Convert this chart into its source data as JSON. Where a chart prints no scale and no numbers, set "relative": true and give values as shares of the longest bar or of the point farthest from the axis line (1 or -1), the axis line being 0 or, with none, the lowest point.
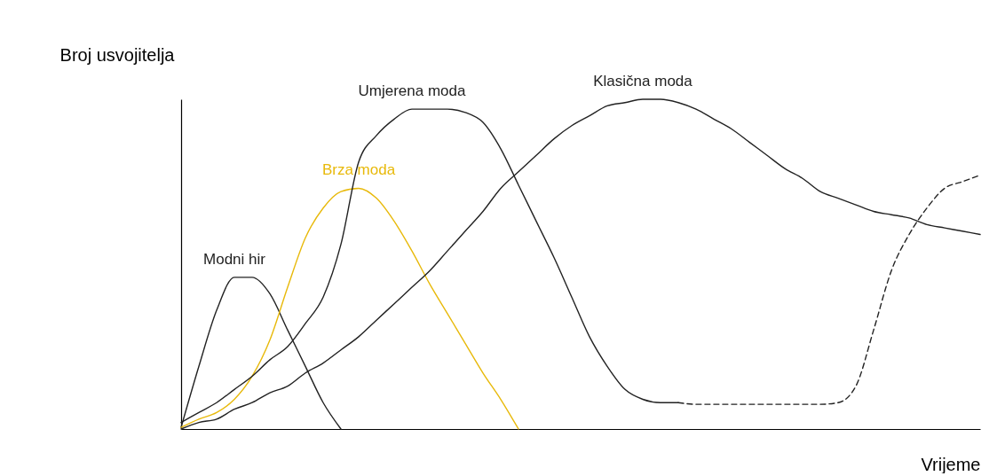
{
  "chart_data": {
    "type": "line",
    "relative": true,
    "xlabel": "Vrijeme",
    "ylabel": "Broj usvojitelja",
    "categories": [
      null,
      null,
      null,
      null,
      null,
      null,
      null,
      null,
      null,
      null,
      null,
      null,
      null,
      null,
      null,
      null,
      null,
      null,
      null,
      null,
      null,
      null,
      null,
      null,
      null,
      null,
      null,
      null,
      null,
      null,
      null,
      null,
      null,
      null,
      null,
      null,
      null,
      null,
      null,
      null,
      null,
      null,
      null,
      null,
      null,
      null
    ],
    "series": [
      {
        "name": "Modni hir",
        "color": "#222222",
        "values": [
          0.005,
          0.19,
          0.36,
          0.46,
          0.46,
          0.41,
          0.3,
          0.19,
          0.08,
          0,
          null,
          null,
          null,
          null,
          null,
          null,
          null,
          null,
          null,
          null,
          null,
          null,
          null,
          null,
          null,
          null,
          null,
          null,
          null,
          null,
          null,
          null,
          null,
          null,
          null,
          null,
          null,
          null,
          null,
          null,
          null,
          null,
          null,
          null,
          null,
          null
        ]
      },
      {
        "name": "Brza moda",
        "color": "#e8b90a",
        "values": [
          0.005,
          0.03,
          0.05,
          0.09,
          0.16,
          0.27,
          0.43,
          0.58,
          0.67,
          0.72,
          0.73,
          0.7,
          0.63,
          0.54,
          0.44,
          0.35,
          0.26,
          0.17,
          0.09,
          0,
          null,
          null,
          null,
          null,
          null,
          null,
          null,
          null,
          null,
          null,
          null,
          null,
          null,
          null,
          null,
          null,
          null,
          null,
          null,
          null,
          null,
          null,
          null,
          null,
          null,
          null
        ]
      },
      {
        "name": "Umjerena moda",
        "color": "#222222",
        "values": [
          0.02,
          0.05,
          0.08,
          0.12,
          0.16,
          0.21,
          0.25,
          0.32,
          0.4,
          0.56,
          0.81,
          0.89,
          0.94,
          0.97,
          0.97,
          0.97,
          0.96,
          0.93,
          0.85,
          0.74,
          0.63,
          0.52,
          0.4,
          0.28,
          0.19,
          0.12,
          0.09,
          0.08,
          0.08,
          null,
          null,
          null,
          null,
          null,
          null,
          null,
          null,
          null,
          null,
          null,
          null,
          null,
          null,
          null,
          null,
          null
        ]
      },
      {
        "color": "#222222",
        "line_style": "dashed",
        "values": [
          null,
          null,
          null,
          null,
          null,
          null,
          null,
          null,
          null,
          null,
          null,
          null,
          null,
          null,
          null,
          null,
          null,
          null,
          null,
          null,
          null,
          null,
          null,
          null,
          null,
          null,
          null,
          null,
          0.08,
          0.075,
          0.075,
          0.075,
          0.075,
          0.075,
          0.075,
          0.075,
          0.075,
          0.08,
          0.13,
          0.3,
          0.48,
          0.59,
          0.67,
          0.73,
          0.75,
          0.77
        ]
      },
      {
        "name": "Klasična moda",
        "color": "#222222",
        "values": [
          0,
          0.02,
          0.03,
          0.06,
          0.08,
          0.11,
          0.13,
          0.17,
          0.2,
          0.24,
          0.28,
          0.33,
          0.38,
          0.43,
          0.48,
          0.54,
          0.6,
          0.66,
          0.73,
          0.78,
          0.83,
          0.88,
          0.92,
          0.95,
          0.98,
          0.99,
          1,
          1,
          0.99,
          0.97,
          0.94,
          0.91,
          0.87,
          0.83,
          0.79,
          0.76,
          0.72,
          0.7,
          0.68,
          0.66,
          0.65,
          0.64,
          0.62,
          0.61,
          0.6,
          0.59
        ]
      }
    ]
  }
}
